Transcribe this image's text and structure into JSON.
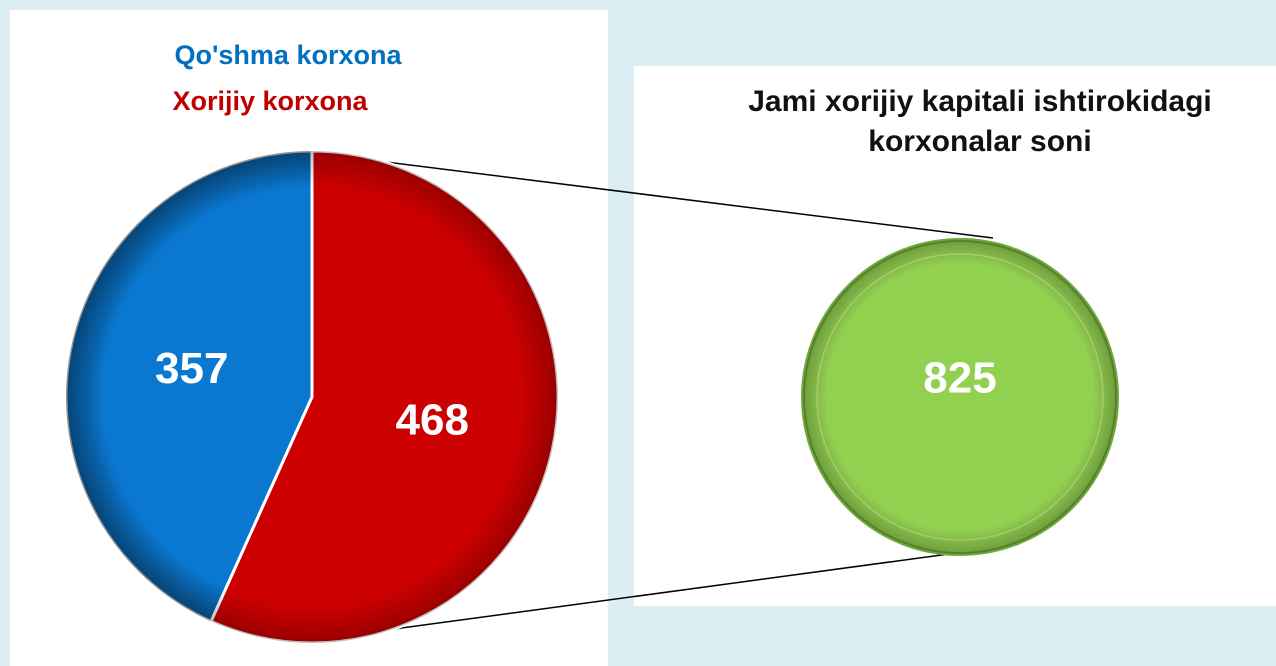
{
  "chart_data": [
    {
      "type": "pie",
      "categories": [
        "Qo'shma korxona",
        "Xorijiy korxona"
      ],
      "values": [
        357,
        468
      ],
      "colors": [
        "#0a78d0",
        "#cc0000"
      ],
      "legend_colors": [
        "#0070c0",
        "#c00000"
      ]
    },
    {
      "type": "pie",
      "title": "Jami xorijiy kapitali ishtirokidagi korxonalar soni",
      "categories": [
        null
      ],
      "values": [
        825
      ],
      "colors": [
        "#92d050"
      ]
    }
  ]
}
